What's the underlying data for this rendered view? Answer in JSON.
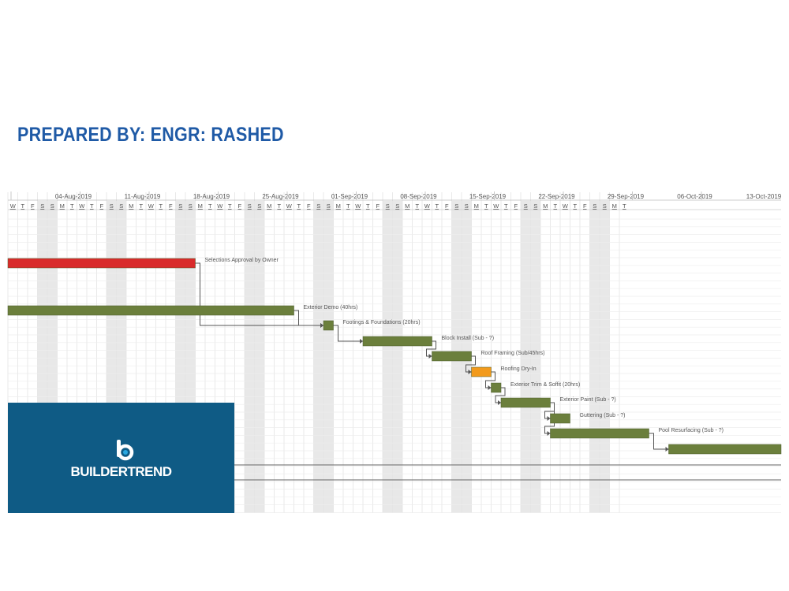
{
  "header": {
    "title": "PREPARED BY: ENGR: RASHED"
  },
  "logo": {
    "brand": "BUILDERTREND"
  },
  "colors": {
    "delay": "#d92b2b",
    "task": "#6b7f3c",
    "pending": "#f29a1c",
    "panel": "#0f5b85",
    "title": "#1f5aa6"
  },
  "chart_data": {
    "type": "gantt",
    "visible_range": [
      "2019-07-31",
      "2019-10-18"
    ],
    "week_labels": [
      "04-Aug-2019",
      "11-Aug-2019",
      "18-Aug-2019",
      "25-Aug-2019",
      "01-Sep-2019",
      "08-Sep-2019",
      "15-Sep-2019",
      "22-Sep-2019",
      "29-Sep-2019",
      "06-Oct-2019",
      "13-Oct-2019"
    ],
    "week_label_dates": [
      "2019-08-04",
      "2019-08-11",
      "2019-08-18",
      "2019-08-25",
      "2019-09-01",
      "2019-09-08",
      "2019-09-15",
      "2019-09-22",
      "2019-09-29",
      "2019-10-06",
      "2019-10-13"
    ],
    "day_letters": [
      "S",
      "M",
      "T",
      "W",
      "T",
      "F",
      "S"
    ],
    "tasks": [
      {
        "name": "Selections Approval by Owner",
        "start": "2019-07-31",
        "end": "2019-08-19",
        "status": "delay"
      },
      {
        "name": "Exterior Demo (40hrs)",
        "start": "2019-07-31",
        "end": "2019-08-29",
        "status": "task"
      },
      {
        "name": "Footings & Foundations (20hrs)",
        "start": "2019-09-01",
        "end": "2019-09-02",
        "status": "task"
      },
      {
        "name": "Block Install (Sub - ?)",
        "start": "2019-09-05",
        "end": "2019-09-12",
        "status": "task"
      },
      {
        "name": "Roof Framing (Sub/45hrs)",
        "start": "2019-09-12",
        "end": "2019-09-16",
        "status": "task"
      },
      {
        "name": "Roofing Dry-In",
        "start": "2019-09-16",
        "end": "2019-09-18",
        "status": "pending"
      },
      {
        "name": "Exterior Trim & Soffit (20hrs)",
        "start": "2019-09-18",
        "end": "2019-09-19",
        "status": "task"
      },
      {
        "name": "Exterior Paint (Sub - ?)",
        "start": "2019-09-19",
        "end": "2019-09-24",
        "status": "task"
      },
      {
        "name": "Guttering (Sub - ?)",
        "start": "2019-09-24",
        "end": "2019-09-26",
        "status": "task"
      },
      {
        "name": "Pool Resurfacing (Sub - ?)",
        "start": "2019-09-24",
        "end": "2019-10-04",
        "status": "task"
      },
      {
        "name": "",
        "start": "2019-10-06",
        "end": "2019-10-18",
        "status": "task"
      }
    ],
    "dependencies": [
      [
        0,
        2
      ],
      [
        1,
        2
      ],
      [
        2,
        3
      ],
      [
        3,
        4
      ],
      [
        4,
        5
      ],
      [
        5,
        6
      ],
      [
        6,
        7
      ],
      [
        7,
        8
      ],
      [
        7,
        9
      ],
      [
        9,
        10
      ]
    ]
  }
}
